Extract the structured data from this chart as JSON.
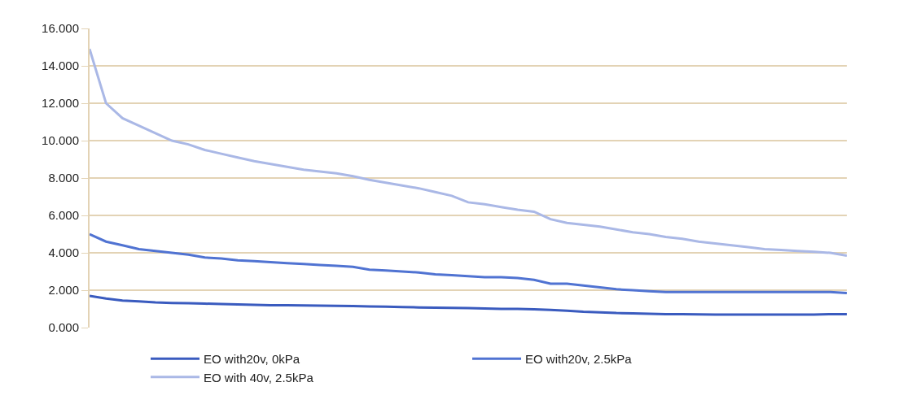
{
  "chart_data": {
    "type": "line",
    "categories": [
      null,
      null,
      null,
      null,
      null,
      null,
      null,
      null,
      null,
      null,
      null,
      null,
      null,
      null,
      null,
      null,
      null,
      null,
      null,
      null,
      null,
      null,
      null,
      null,
      null,
      null,
      null,
      null,
      null,
      null,
      null,
      null,
      null,
      null,
      null,
      null,
      null,
      null,
      null,
      null,
      null,
      null,
      null,
      null,
      null,
      null,
      null
    ],
    "series": [
      {
        "name": "EO with20v, 0kPa",
        "color": "#3a5bbf",
        "values": [
          1.7,
          1.55,
          1.45,
          1.4,
          1.35,
          1.32,
          1.3,
          1.28,
          1.26,
          1.24,
          1.22,
          1.2,
          1.2,
          1.18,
          1.17,
          1.16,
          1.15,
          1.13,
          1.12,
          1.1,
          1.08,
          1.07,
          1.05,
          1.04,
          1.02,
          1.0,
          1.0,
          0.98,
          0.95,
          0.9,
          0.85,
          0.82,
          0.78,
          0.76,
          0.74,
          0.72,
          0.72,
          0.71,
          0.7,
          0.7,
          0.7,
          0.7,
          0.7,
          0.7,
          0.7,
          0.72,
          0.72
        ]
      },
      {
        "name": "EO with20v, 2.5kPa",
        "color": "#5073d2",
        "values": [
          5.0,
          4.6,
          4.4,
          4.2,
          4.1,
          4.0,
          3.9,
          3.75,
          3.7,
          3.6,
          3.55,
          3.5,
          3.45,
          3.4,
          3.35,
          3.3,
          3.25,
          3.1,
          3.05,
          3.0,
          2.95,
          2.85,
          2.8,
          2.75,
          2.7,
          2.7,
          2.65,
          2.55,
          2.35,
          2.35,
          2.25,
          2.15,
          2.05,
          2.0,
          1.95,
          1.9,
          1.9,
          1.9,
          1.9,
          1.9,
          1.9,
          1.9,
          1.9,
          1.9,
          1.9,
          1.9,
          1.85
        ]
      },
      {
        "name": "EO with 40v, 2.5kPa",
        "color": "#aab8e6",
        "values": [
          14.9,
          12.0,
          11.2,
          10.8,
          10.4,
          10.0,
          9.8,
          9.5,
          9.3,
          9.1,
          8.9,
          8.75,
          8.6,
          8.45,
          8.35,
          8.25,
          8.1,
          7.9,
          7.75,
          7.6,
          7.45,
          7.25,
          7.05,
          6.7,
          6.6,
          6.45,
          6.3,
          6.2,
          5.8,
          5.6,
          5.5,
          5.4,
          5.25,
          5.1,
          5.0,
          4.85,
          4.75,
          4.6,
          4.5,
          4.4,
          4.3,
          4.2,
          4.15,
          4.1,
          4.05,
          4.0,
          3.85
        ]
      }
    ],
    "ylim": [
      0,
      16
    ],
    "yticks": [
      {
        "value": 0,
        "label": "0.000"
      },
      {
        "value": 2,
        "label": "2.000"
      },
      {
        "value": 4,
        "label": "4.000"
      },
      {
        "value": 6,
        "label": "6.000"
      },
      {
        "value": 8,
        "label": "8.000"
      },
      {
        "value": 10,
        "label": "10.000"
      },
      {
        "value": 12,
        "label": "12.000"
      },
      {
        "value": 14,
        "label": "14.000"
      },
      {
        "value": 16,
        "label": "16.000"
      }
    ],
    "grid": "y",
    "legend": "bottom",
    "tick_labels": "y",
    "marker": "none",
    "line_style": "solid"
  }
}
